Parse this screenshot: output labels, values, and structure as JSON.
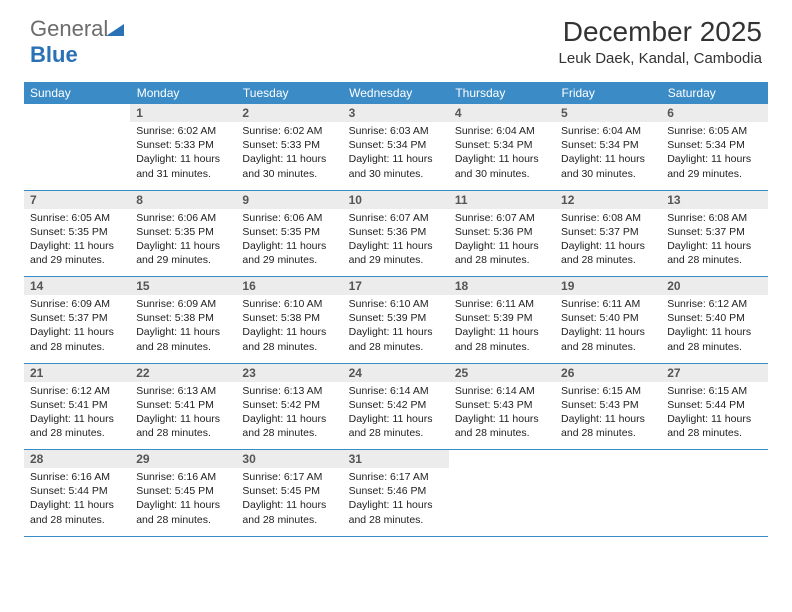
{
  "logo": {
    "gen": "General",
    "blue": "Blue"
  },
  "title": "December 2025",
  "location": "Leuk Daek, Kandal, Cambodia",
  "colors": {
    "header_bg": "#3b8bc7",
    "header_text": "#ffffff",
    "daynum_bg": "#ececec",
    "border": "#3b8bc7",
    "logo_gray": "#6c6c6c",
    "logo_blue": "#2a72b5"
  },
  "weekdays": [
    "Sunday",
    "Monday",
    "Tuesday",
    "Wednesday",
    "Thursday",
    "Friday",
    "Saturday"
  ],
  "weeks": [
    {
      "nums": [
        "",
        "1",
        "2",
        "3",
        "4",
        "5",
        "6"
      ],
      "cells": [
        "",
        "Sunrise: 6:02 AM\nSunset: 5:33 PM\nDaylight: 11 hours and 31 minutes.",
        "Sunrise: 6:02 AM\nSunset: 5:33 PM\nDaylight: 11 hours and 30 minutes.",
        "Sunrise: 6:03 AM\nSunset: 5:34 PM\nDaylight: 11 hours and 30 minutes.",
        "Sunrise: 6:04 AM\nSunset: 5:34 PM\nDaylight: 11 hours and 30 minutes.",
        "Sunrise: 6:04 AM\nSunset: 5:34 PM\nDaylight: 11 hours and 30 minutes.",
        "Sunrise: 6:05 AM\nSunset: 5:34 PM\nDaylight: 11 hours and 29 minutes."
      ]
    },
    {
      "nums": [
        "7",
        "8",
        "9",
        "10",
        "11",
        "12",
        "13"
      ],
      "cells": [
        "Sunrise: 6:05 AM\nSunset: 5:35 PM\nDaylight: 11 hours and 29 minutes.",
        "Sunrise: 6:06 AM\nSunset: 5:35 PM\nDaylight: 11 hours and 29 minutes.",
        "Sunrise: 6:06 AM\nSunset: 5:35 PM\nDaylight: 11 hours and 29 minutes.",
        "Sunrise: 6:07 AM\nSunset: 5:36 PM\nDaylight: 11 hours and 29 minutes.",
        "Sunrise: 6:07 AM\nSunset: 5:36 PM\nDaylight: 11 hours and 28 minutes.",
        "Sunrise: 6:08 AM\nSunset: 5:37 PM\nDaylight: 11 hours and 28 minutes.",
        "Sunrise: 6:08 AM\nSunset: 5:37 PM\nDaylight: 11 hours and 28 minutes."
      ]
    },
    {
      "nums": [
        "14",
        "15",
        "16",
        "17",
        "18",
        "19",
        "20"
      ],
      "cells": [
        "Sunrise: 6:09 AM\nSunset: 5:37 PM\nDaylight: 11 hours and 28 minutes.",
        "Sunrise: 6:09 AM\nSunset: 5:38 PM\nDaylight: 11 hours and 28 minutes.",
        "Sunrise: 6:10 AM\nSunset: 5:38 PM\nDaylight: 11 hours and 28 minutes.",
        "Sunrise: 6:10 AM\nSunset: 5:39 PM\nDaylight: 11 hours and 28 minutes.",
        "Sunrise: 6:11 AM\nSunset: 5:39 PM\nDaylight: 11 hours and 28 minutes.",
        "Sunrise: 6:11 AM\nSunset: 5:40 PM\nDaylight: 11 hours and 28 minutes.",
        "Sunrise: 6:12 AM\nSunset: 5:40 PM\nDaylight: 11 hours and 28 minutes."
      ]
    },
    {
      "nums": [
        "21",
        "22",
        "23",
        "24",
        "25",
        "26",
        "27"
      ],
      "cells": [
        "Sunrise: 6:12 AM\nSunset: 5:41 PM\nDaylight: 11 hours and 28 minutes.",
        "Sunrise: 6:13 AM\nSunset: 5:41 PM\nDaylight: 11 hours and 28 minutes.",
        "Sunrise: 6:13 AM\nSunset: 5:42 PM\nDaylight: 11 hours and 28 minutes.",
        "Sunrise: 6:14 AM\nSunset: 5:42 PM\nDaylight: 11 hours and 28 minutes.",
        "Sunrise: 6:14 AM\nSunset: 5:43 PM\nDaylight: 11 hours and 28 minutes.",
        "Sunrise: 6:15 AM\nSunset: 5:43 PM\nDaylight: 11 hours and 28 minutes.",
        "Sunrise: 6:15 AM\nSunset: 5:44 PM\nDaylight: 11 hours and 28 minutes."
      ]
    },
    {
      "nums": [
        "28",
        "29",
        "30",
        "31",
        "",
        "",
        ""
      ],
      "cells": [
        "Sunrise: 6:16 AM\nSunset: 5:44 PM\nDaylight: 11 hours and 28 minutes.",
        "Sunrise: 6:16 AM\nSunset: 5:45 PM\nDaylight: 11 hours and 28 minutes.",
        "Sunrise: 6:17 AM\nSunset: 5:45 PM\nDaylight: 11 hours and 28 minutes.",
        "Sunrise: 6:17 AM\nSunset: 5:46 PM\nDaylight: 11 hours and 28 minutes.",
        "",
        "",
        ""
      ]
    }
  ]
}
